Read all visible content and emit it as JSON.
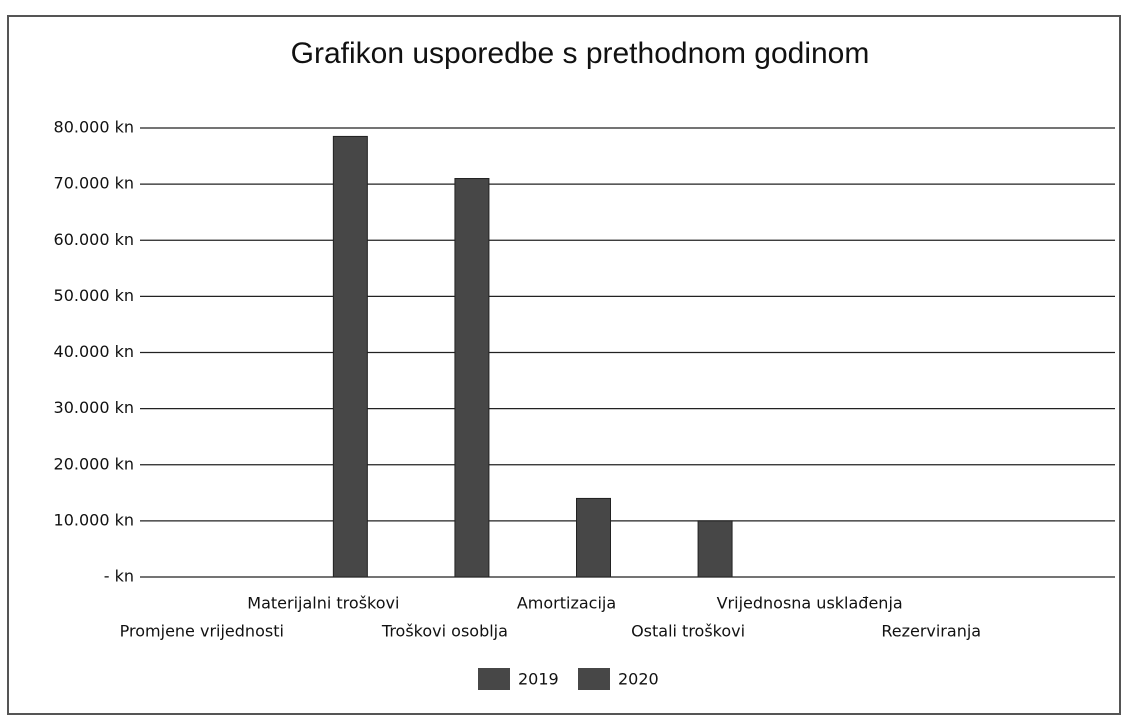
{
  "chart_data": {
    "type": "bar",
    "title": "Grafikon usporedbe s prethodnom godinom",
    "categories": [
      "Promjene vrijednosti",
      "Materijalni troškovi",
      "Troškovi osoblja",
      "Amortizacija",
      "Ostali troškovi",
      "Vrijednosna usklađenja",
      "Rezerviranja"
    ],
    "series": [
      {
        "name": "2019",
        "color": "#474747",
        "values": [
          0,
          0,
          0,
          0,
          0,
          0,
          0
        ]
      },
      {
        "name": "2020",
        "color": "#474747",
        "values": [
          0,
          78500,
          71000,
          14000,
          10000,
          0,
          0
        ]
      }
    ],
    "ylim": [
      0,
      80000
    ],
    "yticks": [
      {
        "value": 0,
        "label": "- kn"
      },
      {
        "value": 10000,
        "label": "10.000 kn"
      },
      {
        "value": 20000,
        "label": "20.000 kn"
      },
      {
        "value": 30000,
        "label": "30.000 kn"
      },
      {
        "value": 40000,
        "label": "40.000 kn"
      },
      {
        "value": 50000,
        "label": "50.000 kn"
      },
      {
        "value": 60000,
        "label": "60.000 kn"
      },
      {
        "value": 70000,
        "label": "70.000 kn"
      },
      {
        "value": 80000,
        "label": "80.000 kn"
      }
    ],
    "grid": true,
    "legend": "bottom"
  }
}
